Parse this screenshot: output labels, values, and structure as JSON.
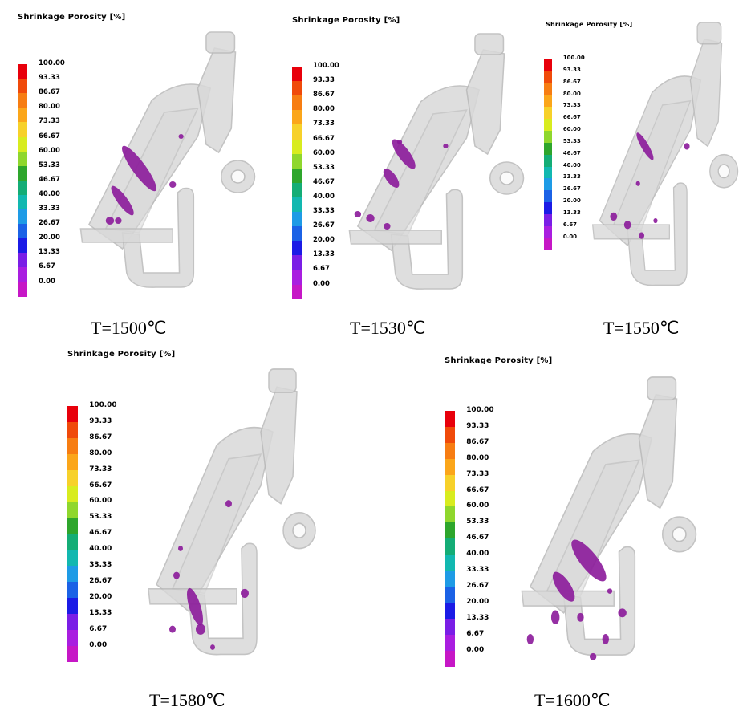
{
  "legend": {
    "title": "Shrinkage  Porosity  [%]",
    "ticks": [
      "100.00",
      "93.33",
      "86.67",
      "80.00",
      "73.33",
      "66.67",
      "60.00",
      "53.33",
      "46.67",
      "40.00",
      "33.33",
      "26.67",
      "20.00",
      "13.33",
      "6.67",
      "0.00"
    ],
    "colors": [
      "#e8000b",
      "#f04a0a",
      "#f77d12",
      "#fba61a",
      "#f7d12a",
      "#d8ec1f",
      "#8fd72d",
      "#2ea62c",
      "#14ad76",
      "#12b8b0",
      "#1e9be6",
      "#1b62e6",
      "#1b1be6",
      "#7a1ee6",
      "#a91ee0",
      "#c617c6"
    ]
  },
  "panels": [
    {
      "caption": "T=1500℃"
    },
    {
      "caption": "T=1530℃"
    },
    {
      "caption": "T=1550℃"
    },
    {
      "caption": "T=1580℃"
    },
    {
      "caption": "T=1600℃"
    }
  ],
  "colors": {
    "casting": "#d9d9d9",
    "casting_edge": "#b9b9b9",
    "defect": "#8b1a9a"
  }
}
